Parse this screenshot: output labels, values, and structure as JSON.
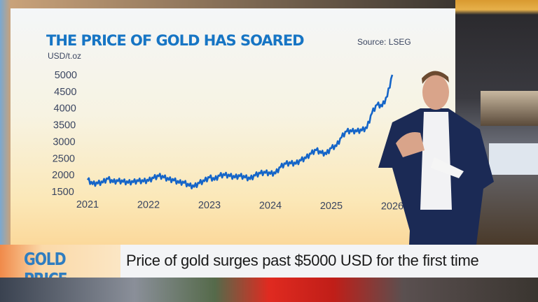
{
  "chart_data": {
    "type": "line",
    "title": "THE PRICE OF GOLD HAS SOARED",
    "source": "Source: LSEG",
    "ylabel": "USD/t.oz",
    "ylim": [
      1500,
      5000
    ],
    "yticks": [
      "5000",
      "4500",
      "4000",
      "3500",
      "3000",
      "2500",
      "2000",
      "1500"
    ],
    "xticks": [
      "2021",
      "2022",
      "2023",
      "2024",
      "2025",
      "2026"
    ],
    "xlim": [
      "2021-01",
      "2026-01"
    ],
    "grid": false,
    "line_color": "#1565c8",
    "series": [
      {
        "x": [
          "2021-01",
          "2021-02",
          "2021-03",
          "2021-04",
          "2021-05",
          "2021-06",
          "2021-07",
          "2021-08",
          "2021-09",
          "2021-10",
          "2021-11",
          "2021-12",
          "2022-01",
          "2022-02",
          "2022-03",
          "2022-04",
          "2022-05",
          "2022-06",
          "2022-07",
          "2022-08",
          "2022-09",
          "2022-10",
          "2022-11",
          "2022-12",
          "2023-01",
          "2023-02",
          "2023-03",
          "2023-04",
          "2023-05",
          "2023-06",
          "2023-07",
          "2023-08",
          "2023-09",
          "2023-10",
          "2023-11",
          "2023-12",
          "2024-01",
          "2024-02",
          "2024-03",
          "2024-04",
          "2024-05",
          "2024-06",
          "2024-07",
          "2024-08",
          "2024-09",
          "2024-10",
          "2024-11",
          "2024-12",
          "2025-01",
          "2025-02",
          "2025-03",
          "2025-04",
          "2025-05",
          "2025-06",
          "2025-07",
          "2025-08",
          "2025-09",
          "2025-10",
          "2025-11",
          "2025-12",
          "2026-01"
        ],
        "values": [
          1850,
          1720,
          1740,
          1770,
          1880,
          1780,
          1810,
          1790,
          1760,
          1780,
          1810,
          1800,
          1820,
          1900,
          1960,
          1920,
          1850,
          1830,
          1760,
          1760,
          1670,
          1640,
          1750,
          1810,
          1920,
          1850,
          1970,
          1990,
          1960,
          1920,
          1960,
          1920,
          1870,
          1980,
          2040,
          2060,
          2030,
          2040,
          2230,
          2330,
          2340,
          2330,
          2430,
          2500,
          2630,
          2740,
          2650,
          2620,
          2800,
          2860,
          3120,
          3300,
          3300,
          3300,
          3330,
          3400,
          3850,
          4100,
          4050,
          4350,
          5000
        ]
      }
    ]
  },
  "lower_third": {
    "tag": "GOLD PRICE",
    "headline": "Price of gold surges past $5000 USD for the first time"
  }
}
